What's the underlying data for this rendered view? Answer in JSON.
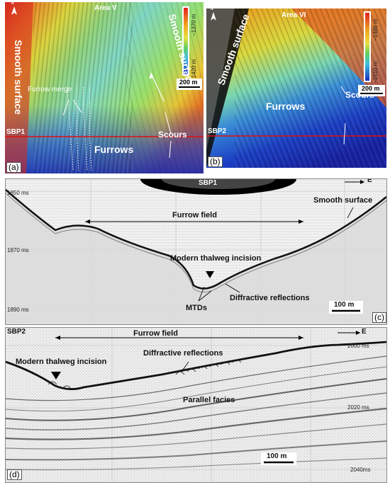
{
  "panel_a": {
    "letter": "(a)",
    "area": "Area V",
    "smooth_left": "Smooth surface",
    "smooth_right": "Smooth surface",
    "furrow_merge": "Furrow merge",
    "scours": "Scours",
    "furrows": "Furrows",
    "sbp": "SBP1",
    "scale_max": "−1370 m",
    "scale_min": "−1420 m",
    "scale_bar": "200 m",
    "north": "N"
  },
  "panel_b": {
    "letter": "(b)",
    "area": "Area VI",
    "smooth": "Smooth surface",
    "furrows": "Furrows",
    "scours": "Scours",
    "sbp": "SBP2",
    "scale_max": "−1485 m",
    "scale_min": "−1510 m",
    "scale_bar": "200 m",
    "north": "N"
  },
  "panel_c": {
    "letter": "(c)",
    "title": "SBP1",
    "dir": "E",
    "t1": "1850 ms",
    "t2": "1870 ms",
    "t3": "1890 ms",
    "furrow_field": "Furrow field",
    "smooth_surface": "Smooth surface",
    "thalweg": "Modern thalweg incision",
    "diffractive": "Diffractive reflections",
    "mtds": "MTDs",
    "scale": "100 m"
  },
  "panel_d": {
    "letter": "(d)",
    "title": "SBP2",
    "dir": "E",
    "furrow_field": "Furrow field",
    "thalweg": "Modern thalweg incision",
    "diffractive": "Diffractive reflections",
    "parallel": "Parallel facies",
    "t1": "2000 ms",
    "t2": "2020 ms",
    "t3": "2040ms",
    "scale": "100 m"
  },
  "colors": {
    "bathy_high": "#d8241c",
    "bathy_mid": "#e8d43a",
    "bathy_low": "#1c3fc4",
    "section_line": "#e01010"
  }
}
